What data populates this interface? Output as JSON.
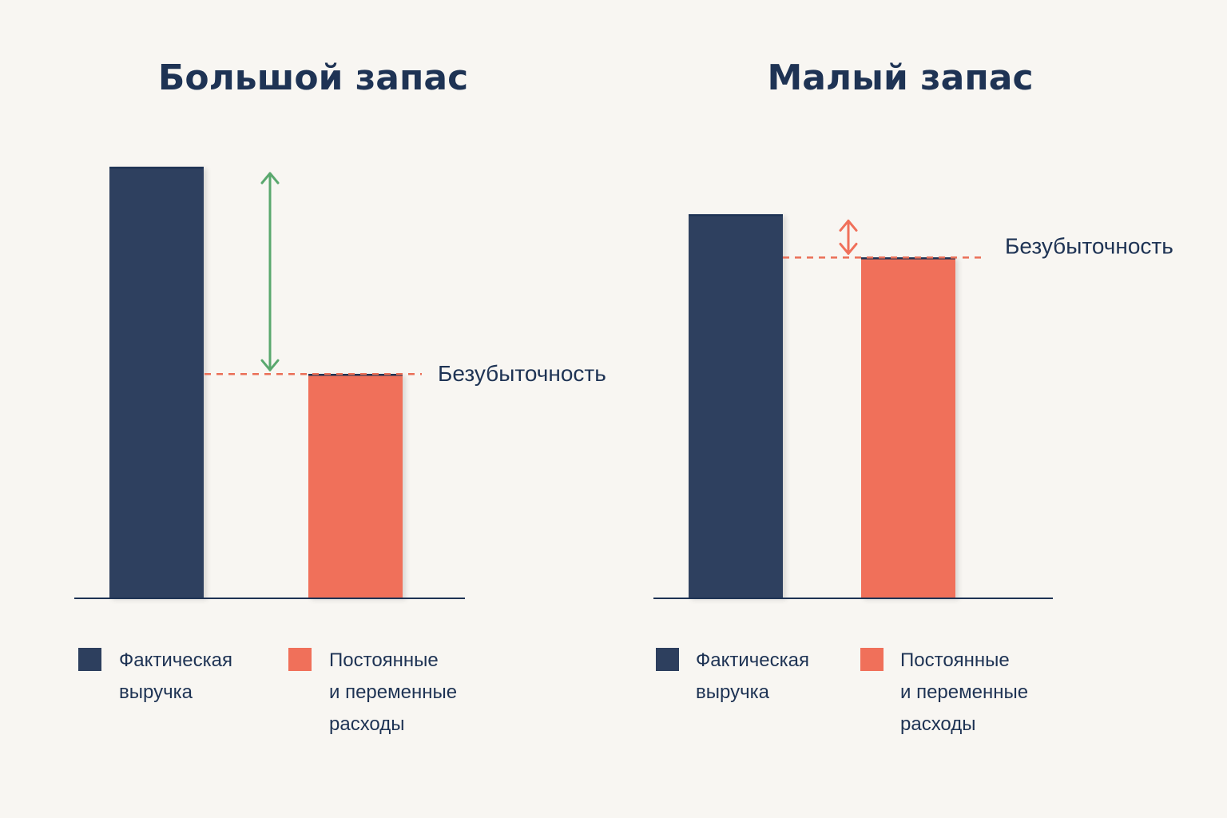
{
  "colors": {
    "background": "#f8f6f2",
    "revenue": "#2d3f5e",
    "costs": "#f0705a",
    "margin_large": "#5aa86e",
    "margin_small": "#f0705a",
    "breakeven_line": "#ea6f57",
    "axis": "#1e3354"
  },
  "chart_data": [
    {
      "type": "bar",
      "title": "Большой запас",
      "categories": [
        "Фактическая выручка",
        "Постоянные и переменные расходы"
      ],
      "values": [
        100,
        52
      ],
      "ylim": [
        0,
        100
      ],
      "breakeven": {
        "label": "Безубыточность",
        "value": 52
      },
      "margin_arrow_color": "margin_large",
      "legend": [
        {
          "lines": [
            "Фактическая",
            "выручка"
          ],
          "color_key": "revenue"
        },
        {
          "lines": [
            "Постоянные",
            "и переменные",
            "расходы"
          ],
          "color_key": "costs"
        }
      ]
    },
    {
      "type": "bar",
      "title": "Малый запас",
      "categories": [
        "Фактическая выручка",
        "Постоянные и переменные расходы"
      ],
      "values": [
        89,
        79
      ],
      "ylim": [
        0,
        100
      ],
      "breakeven": {
        "label": "Безубыточность",
        "value": 79
      },
      "margin_arrow_color": "margin_small",
      "legend": [
        {
          "lines": [
            "Фактическая",
            "выручка"
          ],
          "color_key": "revenue"
        },
        {
          "lines": [
            "Постоянные",
            "и переменные",
            "расходы"
          ],
          "color_key": "costs"
        }
      ]
    }
  ]
}
